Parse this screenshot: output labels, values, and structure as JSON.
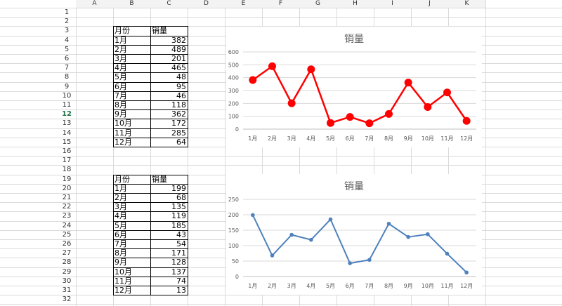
{
  "columns": [
    "A",
    "B",
    "C",
    "D",
    "E",
    "F",
    "G",
    "H",
    "I",
    "J",
    "K"
  ],
  "rows": [
    "1",
    "2",
    "3",
    "4",
    "5",
    "6",
    "7",
    "8",
    "9",
    "10",
    "11",
    "12",
    "13",
    "14",
    "15",
    "16",
    "17",
    "18",
    "19",
    "20",
    "21",
    "22",
    "23",
    "24",
    "25",
    "26",
    "27",
    "28",
    "29",
    "30",
    "31",
    "32"
  ],
  "selected_row": "12",
  "table1": {
    "header": [
      "月份",
      "销量"
    ],
    "rows": [
      [
        "1月",
        "382"
      ],
      [
        "2月",
        "489"
      ],
      [
        "3月",
        "201"
      ],
      [
        "4月",
        "465"
      ],
      [
        "5月",
        "48"
      ],
      [
        "6月",
        "95"
      ],
      [
        "7月",
        "46"
      ],
      [
        "8月",
        "118"
      ],
      [
        "9月",
        "362"
      ],
      [
        "10月",
        "172"
      ],
      [
        "11月",
        "285"
      ],
      [
        "12月",
        "64"
      ]
    ]
  },
  "table2": {
    "header": [
      "月份",
      "销量"
    ],
    "rows": [
      [
        "1月",
        "199"
      ],
      [
        "2月",
        "68"
      ],
      [
        "3月",
        "135"
      ],
      [
        "4月",
        "119"
      ],
      [
        "5月",
        "185"
      ],
      [
        "6月",
        "43"
      ],
      [
        "7月",
        "54"
      ],
      [
        "8月",
        "171"
      ],
      [
        "9月",
        "128"
      ],
      [
        "10月",
        "137"
      ],
      [
        "11月",
        "74"
      ],
      [
        "12月",
        "13"
      ]
    ]
  },
  "chart_data": [
    {
      "type": "line",
      "title": "销量",
      "categories": [
        "1月",
        "2月",
        "3月",
        "4月",
        "5月",
        "6月",
        "7月",
        "8月",
        "9月",
        "10月",
        "11月",
        "12月"
      ],
      "series": [
        {
          "values": [
            382,
            489,
            201,
            465,
            48,
            95,
            46,
            118,
            362,
            172,
            285,
            64
          ],
          "color": "#ff0000"
        }
      ],
      "ylim": [
        0,
        600
      ],
      "yticks": [
        "0",
        "100",
        "200",
        "300",
        "400",
        "500",
        "600"
      ],
      "grid": true,
      "marker": "large"
    },
    {
      "type": "line",
      "title": "销量",
      "categories": [
        "1月",
        "2月",
        "3月",
        "4月",
        "5月",
        "6月",
        "7月",
        "8月",
        "9月",
        "10月",
        "11月",
        "12月"
      ],
      "series": [
        {
          "values": [
            199,
            68,
            135,
            119,
            185,
            43,
            54,
            171,
            128,
            137,
            74,
            13
          ],
          "color": "#4f81bd"
        }
      ],
      "ylim": [
        0,
        250
      ],
      "yticks": [
        "0",
        "50",
        "100",
        "150",
        "200",
        "250"
      ],
      "grid": true,
      "marker": "small"
    }
  ]
}
